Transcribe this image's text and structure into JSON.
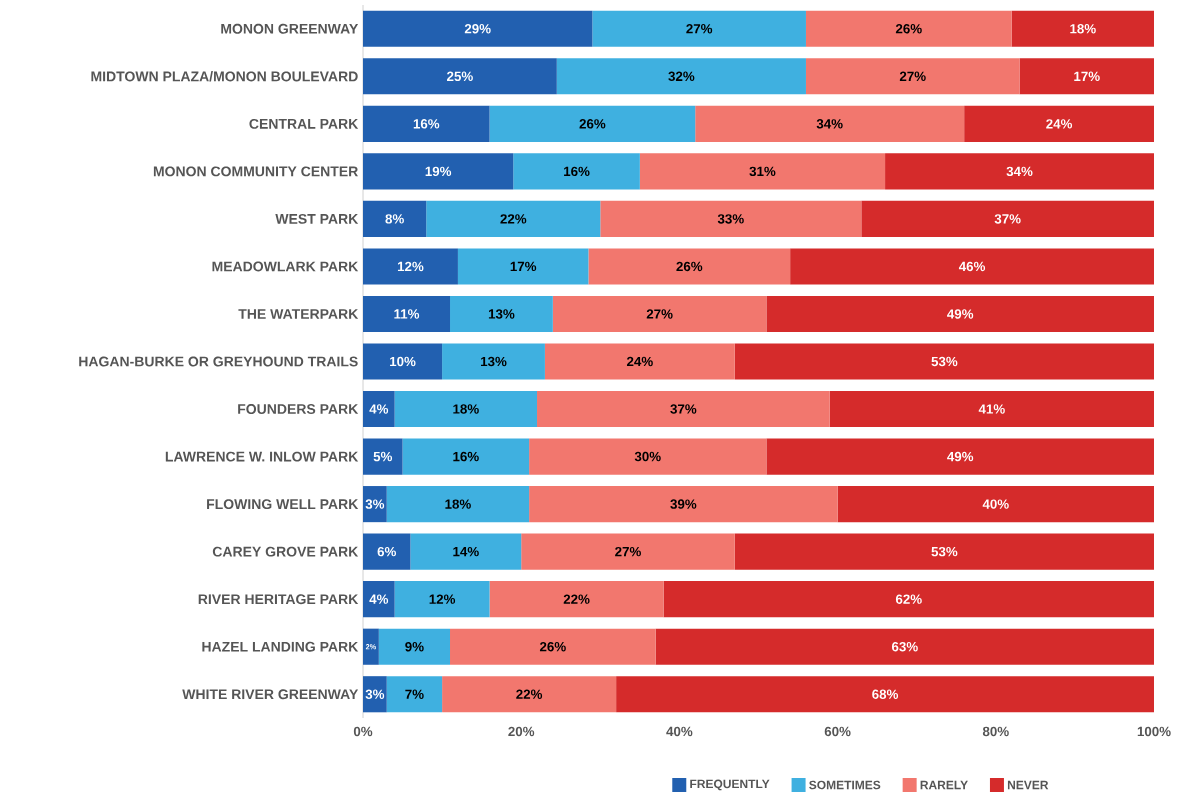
{
  "chart_data": {
    "type": "bar",
    "orientation": "horizontal",
    "stacked": true,
    "categories": [
      "MONON GREENWAY",
      "MIDTOWN PLAZA/MONON BOULEVARD",
      "CENTRAL PARK",
      "MONON COMMUNITY CENTER",
      "WEST PARK",
      "MEADOWLARK PARK",
      "THE WATERPARK",
      "HAGAN-BURKE OR GREYHOUND TRAILS",
      "FOUNDERS PARK",
      "LAWRENCE W. INLOW PARK",
      "FLOWING WELL PARK",
      "CAREY GROVE PARK",
      "RIVER HERITAGE PARK",
      "HAZEL LANDING PARK",
      "WHITE RIVER GREENWAY"
    ],
    "series": [
      {
        "name": "FREQUENTLY",
        "color": "#2260b0",
        "values": [
          29,
          24.5,
          16,
          19,
          8,
          12,
          11,
          10,
          4,
          5,
          3,
          6,
          4,
          2,
          3
        ],
        "value_labels": [
          "29%",
          "25%",
          "16%",
          "19%",
          "8%",
          "12%",
          "11%",
          "10%",
          "4%",
          "5%",
          "3%",
          "6%",
          "4%",
          "2%",
          "3%"
        ]
      },
      {
        "name": "SOMETIMES",
        "color": "#3fb0e0",
        "values": [
          27,
          31.5,
          26,
          16,
          22,
          16.5,
          13,
          13,
          18,
          16,
          18,
          14,
          12,
          9,
          7
        ],
        "value_labels": [
          "27%",
          "32%",
          "26%",
          "16%",
          "22%",
          "17%",
          "13%",
          "13%",
          "18%",
          "16%",
          "18%",
          "14%",
          "12%",
          "9%",
          "7%"
        ]
      },
      {
        "name": "RARELY",
        "color": "#f2776e",
        "values": [
          26,
          27,
          34,
          31,
          33,
          25.5,
          27,
          24,
          37,
          30,
          39,
          27,
          22,
          26,
          22
        ],
        "value_labels": [
          "26%",
          "27%",
          "34%",
          "31%",
          "33%",
          "26%",
          "27%",
          "24%",
          "37%",
          "30%",
          "39%",
          "27%",
          "22%",
          "26%",
          "22%"
        ]
      },
      {
        "name": "NEVER",
        "color": "#d52b2b",
        "values": [
          18,
          17,
          24,
          34,
          37,
          46,
          49,
          53,
          41,
          49,
          40,
          53,
          62,
          63,
          68
        ],
        "value_labels": [
          "18%",
          "17%",
          "24%",
          "34%",
          "37%",
          "46%",
          "49%",
          "53%",
          "41%",
          "49%",
          "40%",
          "53%",
          "62%",
          "63%",
          "68%"
        ]
      }
    ],
    "xlim": [
      0,
      100
    ],
    "xticks": [
      {
        "value": 0,
        "label": "0%"
      },
      {
        "value": 20,
        "label": "20%"
      },
      {
        "value": 40,
        "label": "40%"
      },
      {
        "value": 60,
        "label": "60%"
      },
      {
        "value": 80,
        "label": "80%"
      },
      {
        "value": 100,
        "label": "100%"
      }
    ],
    "grid": false,
    "legend": "bottom right"
  }
}
